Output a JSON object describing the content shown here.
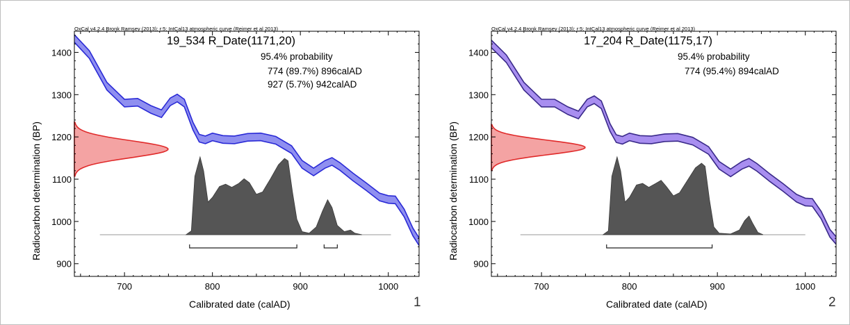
{
  "chart_data": [
    {
      "type": "area",
      "header": "OxCal v4.2.4 Bronk Ramsey (2013); r:5; IntCal13 atmospheric curve (Reimer et al 2013)",
      "title": "19_534 R_Date(1171,20)",
      "probability_heading": "95.4% probability",
      "ranges": [
        {
          "label": "774 (89.7%) 896calAD",
          "from": 774,
          "to": 896
        },
        {
          "label": "927 (5.7%) 942calAD",
          "from": 927,
          "to": 942
        }
      ],
      "xlabel": "Calibrated date (calAD)",
      "ylabel": "Radiocarbon determination (BP)",
      "xlim": [
        643,
        1035
      ],
      "ylim": [
        870,
        1450
      ],
      "xticks": [
        700,
        800,
        900,
        1000
      ],
      "yticks": [
        900,
        1000,
        1100,
        1200,
        1300,
        1400
      ],
      "panel_number": "1",
      "curve_color": "#2a2ad6",
      "curve_fill": "#8f8ff0",
      "radiocarbon_measurement": {
        "mean": 1171,
        "sd": 20,
        "color": "#e02a2a"
      },
      "calibration_curve": [
        {
          "x": 643,
          "y": 1433
        },
        {
          "x": 660,
          "y": 1395
        },
        {
          "x": 680,
          "y": 1320
        },
        {
          "x": 700,
          "y": 1280
        },
        {
          "x": 715,
          "y": 1282
        },
        {
          "x": 730,
          "y": 1265
        },
        {
          "x": 742,
          "y": 1255
        },
        {
          "x": 752,
          "y": 1283
        },
        {
          "x": 760,
          "y": 1292
        },
        {
          "x": 768,
          "y": 1280
        },
        {
          "x": 778,
          "y": 1225
        },
        {
          "x": 785,
          "y": 1197
        },
        {
          "x": 792,
          "y": 1193
        },
        {
          "x": 800,
          "y": 1200
        },
        {
          "x": 812,
          "y": 1194
        },
        {
          "x": 825,
          "y": 1193
        },
        {
          "x": 840,
          "y": 1199
        },
        {
          "x": 855,
          "y": 1200
        },
        {
          "x": 872,
          "y": 1192
        },
        {
          "x": 890,
          "y": 1170
        },
        {
          "x": 902,
          "y": 1135
        },
        {
          "x": 915,
          "y": 1117
        },
        {
          "x": 928,
          "y": 1135
        },
        {
          "x": 936,
          "y": 1142
        },
        {
          "x": 945,
          "y": 1130
        },
        {
          "x": 960,
          "y": 1105
        },
        {
          "x": 975,
          "y": 1082
        },
        {
          "x": 990,
          "y": 1058
        },
        {
          "x": 1000,
          "y": 1052
        },
        {
          "x": 1008,
          "y": 1051
        },
        {
          "x": 1018,
          "y": 1020
        },
        {
          "x": 1028,
          "y": 975
        },
        {
          "x": 1035,
          "y": 952
        }
      ],
      "curve_halfwidth": 9,
      "posterior_baseline_range": [
        672,
        1003
      ],
      "posterior_density": [
        {
          "x": 770,
          "y": 0
        },
        {
          "x": 776,
          "y": 0.05
        },
        {
          "x": 780,
          "y": 0.75
        },
        {
          "x": 786,
          "y": 1.0
        },
        {
          "x": 790,
          "y": 0.82
        },
        {
          "x": 795,
          "y": 0.42
        },
        {
          "x": 800,
          "y": 0.48
        },
        {
          "x": 808,
          "y": 0.62
        },
        {
          "x": 815,
          "y": 0.65
        },
        {
          "x": 822,
          "y": 0.61
        },
        {
          "x": 830,
          "y": 0.66
        },
        {
          "x": 836,
          "y": 0.72
        },
        {
          "x": 842,
          "y": 0.67
        },
        {
          "x": 850,
          "y": 0.52
        },
        {
          "x": 857,
          "y": 0.55
        },
        {
          "x": 866,
          "y": 0.72
        },
        {
          "x": 875,
          "y": 0.9
        },
        {
          "x": 882,
          "y": 0.98
        },
        {
          "x": 886,
          "y": 0.95
        },
        {
          "x": 891,
          "y": 0.55
        },
        {
          "x": 896,
          "y": 0.2
        },
        {
          "x": 902,
          "y": 0.04
        },
        {
          "x": 910,
          "y": 0.02
        },
        {
          "x": 918,
          "y": 0.1
        },
        {
          "x": 925,
          "y": 0.3
        },
        {
          "x": 931,
          "y": 0.45
        },
        {
          "x": 936,
          "y": 0.35
        },
        {
          "x": 942,
          "y": 0.12
        },
        {
          "x": 950,
          "y": 0.04
        },
        {
          "x": 957,
          "y": 0.06
        },
        {
          "x": 962,
          "y": 0.02
        },
        {
          "x": 970,
          "y": 0
        }
      ]
    },
    {
      "type": "area",
      "header": "OxCal v4.2.4 Bronk Ramsey (2013); r:5; IntCal13 atmospheric curve (Reimer et al 2013)",
      "title": "17_204 R_Date(1175,17)",
      "probability_heading": "95.4% probability",
      "ranges": [
        {
          "label": "774 (95.4%) 894calAD",
          "from": 774,
          "to": 894
        }
      ],
      "xlabel": "Calibrated date (calAD)",
      "ylabel": "Radiocarbon determination (BP)",
      "xlim": [
        643,
        1035
      ],
      "ylim": [
        870,
        1450
      ],
      "xticks": [
        700,
        800,
        900,
        1000
      ],
      "yticks": [
        900,
        1000,
        1100,
        1200,
        1300,
        1400
      ],
      "panel_number": "2",
      "curve_color": "#3a2a8a",
      "curve_fill": "#a88ef0",
      "radiocarbon_measurement": {
        "mean": 1175,
        "sd": 17,
        "color": "#e02a2a"
      },
      "calibration_curve": [
        {
          "x": 643,
          "y": 1420
        },
        {
          "x": 660,
          "y": 1385
        },
        {
          "x": 680,
          "y": 1320
        },
        {
          "x": 700,
          "y": 1280
        },
        {
          "x": 715,
          "y": 1280
        },
        {
          "x": 730,
          "y": 1262
        },
        {
          "x": 742,
          "y": 1252
        },
        {
          "x": 752,
          "y": 1280
        },
        {
          "x": 760,
          "y": 1288
        },
        {
          "x": 768,
          "y": 1276
        },
        {
          "x": 778,
          "y": 1222
        },
        {
          "x": 785,
          "y": 1196
        },
        {
          "x": 792,
          "y": 1192
        },
        {
          "x": 800,
          "y": 1200
        },
        {
          "x": 812,
          "y": 1194
        },
        {
          "x": 825,
          "y": 1193
        },
        {
          "x": 840,
          "y": 1198
        },
        {
          "x": 855,
          "y": 1199
        },
        {
          "x": 872,
          "y": 1190
        },
        {
          "x": 890,
          "y": 1168
        },
        {
          "x": 902,
          "y": 1133
        },
        {
          "x": 915,
          "y": 1115
        },
        {
          "x": 928,
          "y": 1133
        },
        {
          "x": 936,
          "y": 1140
        },
        {
          "x": 945,
          "y": 1128
        },
        {
          "x": 960,
          "y": 1103
        },
        {
          "x": 975,
          "y": 1080
        },
        {
          "x": 990,
          "y": 1055
        },
        {
          "x": 1000,
          "y": 1046
        },
        {
          "x": 1008,
          "y": 1045
        },
        {
          "x": 1018,
          "y": 1015
        },
        {
          "x": 1028,
          "y": 972
        },
        {
          "x": 1035,
          "y": 955
        }
      ],
      "curve_halfwidth": 9,
      "posterior_baseline_range": [
        676,
        1000
      ],
      "posterior_density": [
        {
          "x": 770,
          "y": 0
        },
        {
          "x": 776,
          "y": 0.05
        },
        {
          "x": 780,
          "y": 0.75
        },
        {
          "x": 786,
          "y": 1.0
        },
        {
          "x": 790,
          "y": 0.82
        },
        {
          "x": 795,
          "y": 0.42
        },
        {
          "x": 800,
          "y": 0.48
        },
        {
          "x": 808,
          "y": 0.64
        },
        {
          "x": 815,
          "y": 0.66
        },
        {
          "x": 822,
          "y": 0.61
        },
        {
          "x": 830,
          "y": 0.66
        },
        {
          "x": 836,
          "y": 0.7
        },
        {
          "x": 842,
          "y": 0.62
        },
        {
          "x": 850,
          "y": 0.5
        },
        {
          "x": 857,
          "y": 0.54
        },
        {
          "x": 866,
          "y": 0.7
        },
        {
          "x": 875,
          "y": 0.86
        },
        {
          "x": 882,
          "y": 0.92
        },
        {
          "x": 886,
          "y": 0.88
        },
        {
          "x": 891,
          "y": 0.45
        },
        {
          "x": 896,
          "y": 0.1
        },
        {
          "x": 902,
          "y": 0.02
        },
        {
          "x": 915,
          "y": 0.01
        },
        {
          "x": 925,
          "y": 0.06
        },
        {
          "x": 931,
          "y": 0.18
        },
        {
          "x": 936,
          "y": 0.24
        },
        {
          "x": 940,
          "y": 0.15
        },
        {
          "x": 946,
          "y": 0.03
        },
        {
          "x": 952,
          "y": 0
        }
      ]
    }
  ]
}
